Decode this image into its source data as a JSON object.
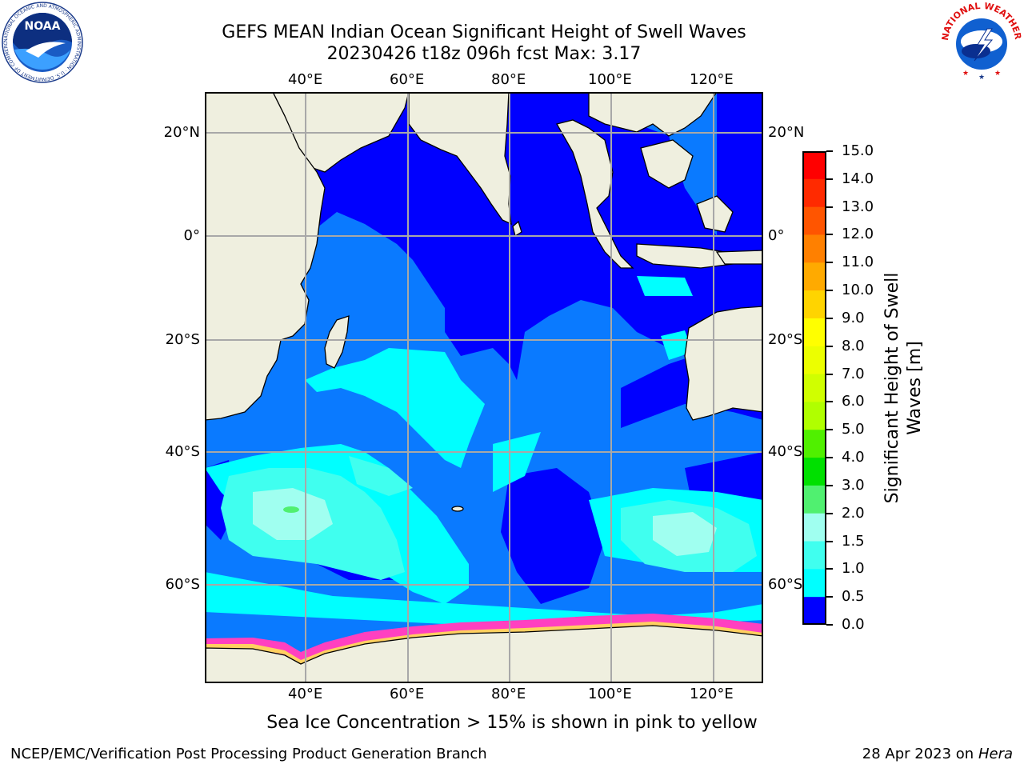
{
  "header": {
    "title_line1": "GEFS MEAN Indian Ocean Significant Height of Swell Waves",
    "title_line2": "20230426 t18z 096h fcst   Max: 3.17"
  },
  "logos": {
    "left_text": "NOAA",
    "left_ring_text": "NATIONAL OCEANIC AND ATMOSPHERIC ADMINISTRATION · U.S. DEPARTMENT OF COMMERCE",
    "right_ring_text": "NATIONAL WEATHER SERVICE"
  },
  "map": {
    "lon_labels_top": [
      "40°E",
      "60°E",
      "80°E",
      "100°E",
      "120°E"
    ],
    "lon_labels_bottom": [
      "40°E",
      "60°E",
      "80°E",
      "100°E",
      "120°E"
    ],
    "lat_labels_left": [
      "20°N",
      "0°",
      "20°S",
      "40°S",
      "60°S"
    ],
    "lat_labels_right": [
      "20°N",
      "0°",
      "20°S",
      "40°S",
      "60°S"
    ],
    "colors": {
      "land": "#efefdf",
      "band_0_0_5": "#0000ff",
      "band_0_5_1_0": "#0a7aff",
      "band_1_0_1_5": "#00ffff",
      "band_1_5_2_0": "#40ffef",
      "band_2_0_3_0": "#a0fff0",
      "band_3_0_4_0": "#50f070",
      "ice": "#ff40c0",
      "ice_edge": "#ffd060"
    }
  },
  "colorbar": {
    "label_line1": "Significant Height of Swell",
    "label_line2": "Waves [m]",
    "ticks": [
      "15.0",
      "14.0",
      "13.0",
      "12.0",
      "11.0",
      "10.0",
      "9.0",
      "8.0",
      "7.0",
      "6.0",
      "5.0",
      "4.0",
      "3.0",
      "2.0",
      "1.5",
      "1.0",
      "0.5",
      "0.0"
    ],
    "colors_top_to_bottom": [
      "#ff0000",
      "#ff2a00",
      "#ff5500",
      "#ff8000",
      "#ffaa00",
      "#ffd400",
      "#ffff00",
      "#ecff00",
      "#d0ff00",
      "#b0ff00",
      "#50f000",
      "#00e000",
      "#50f070",
      "#a0fff0",
      "#40ffef",
      "#00ffff",
      "#0a7aff",
      "#0000ff"
    ]
  },
  "caption": "Sea Ice Concentration > 15% is shown in pink to yellow",
  "footer": {
    "left": "NCEP/EMC/Verification Post Processing Product Generation Branch",
    "right_prefix": "28 Apr 2023 on ",
    "right_host": "Hera"
  }
}
